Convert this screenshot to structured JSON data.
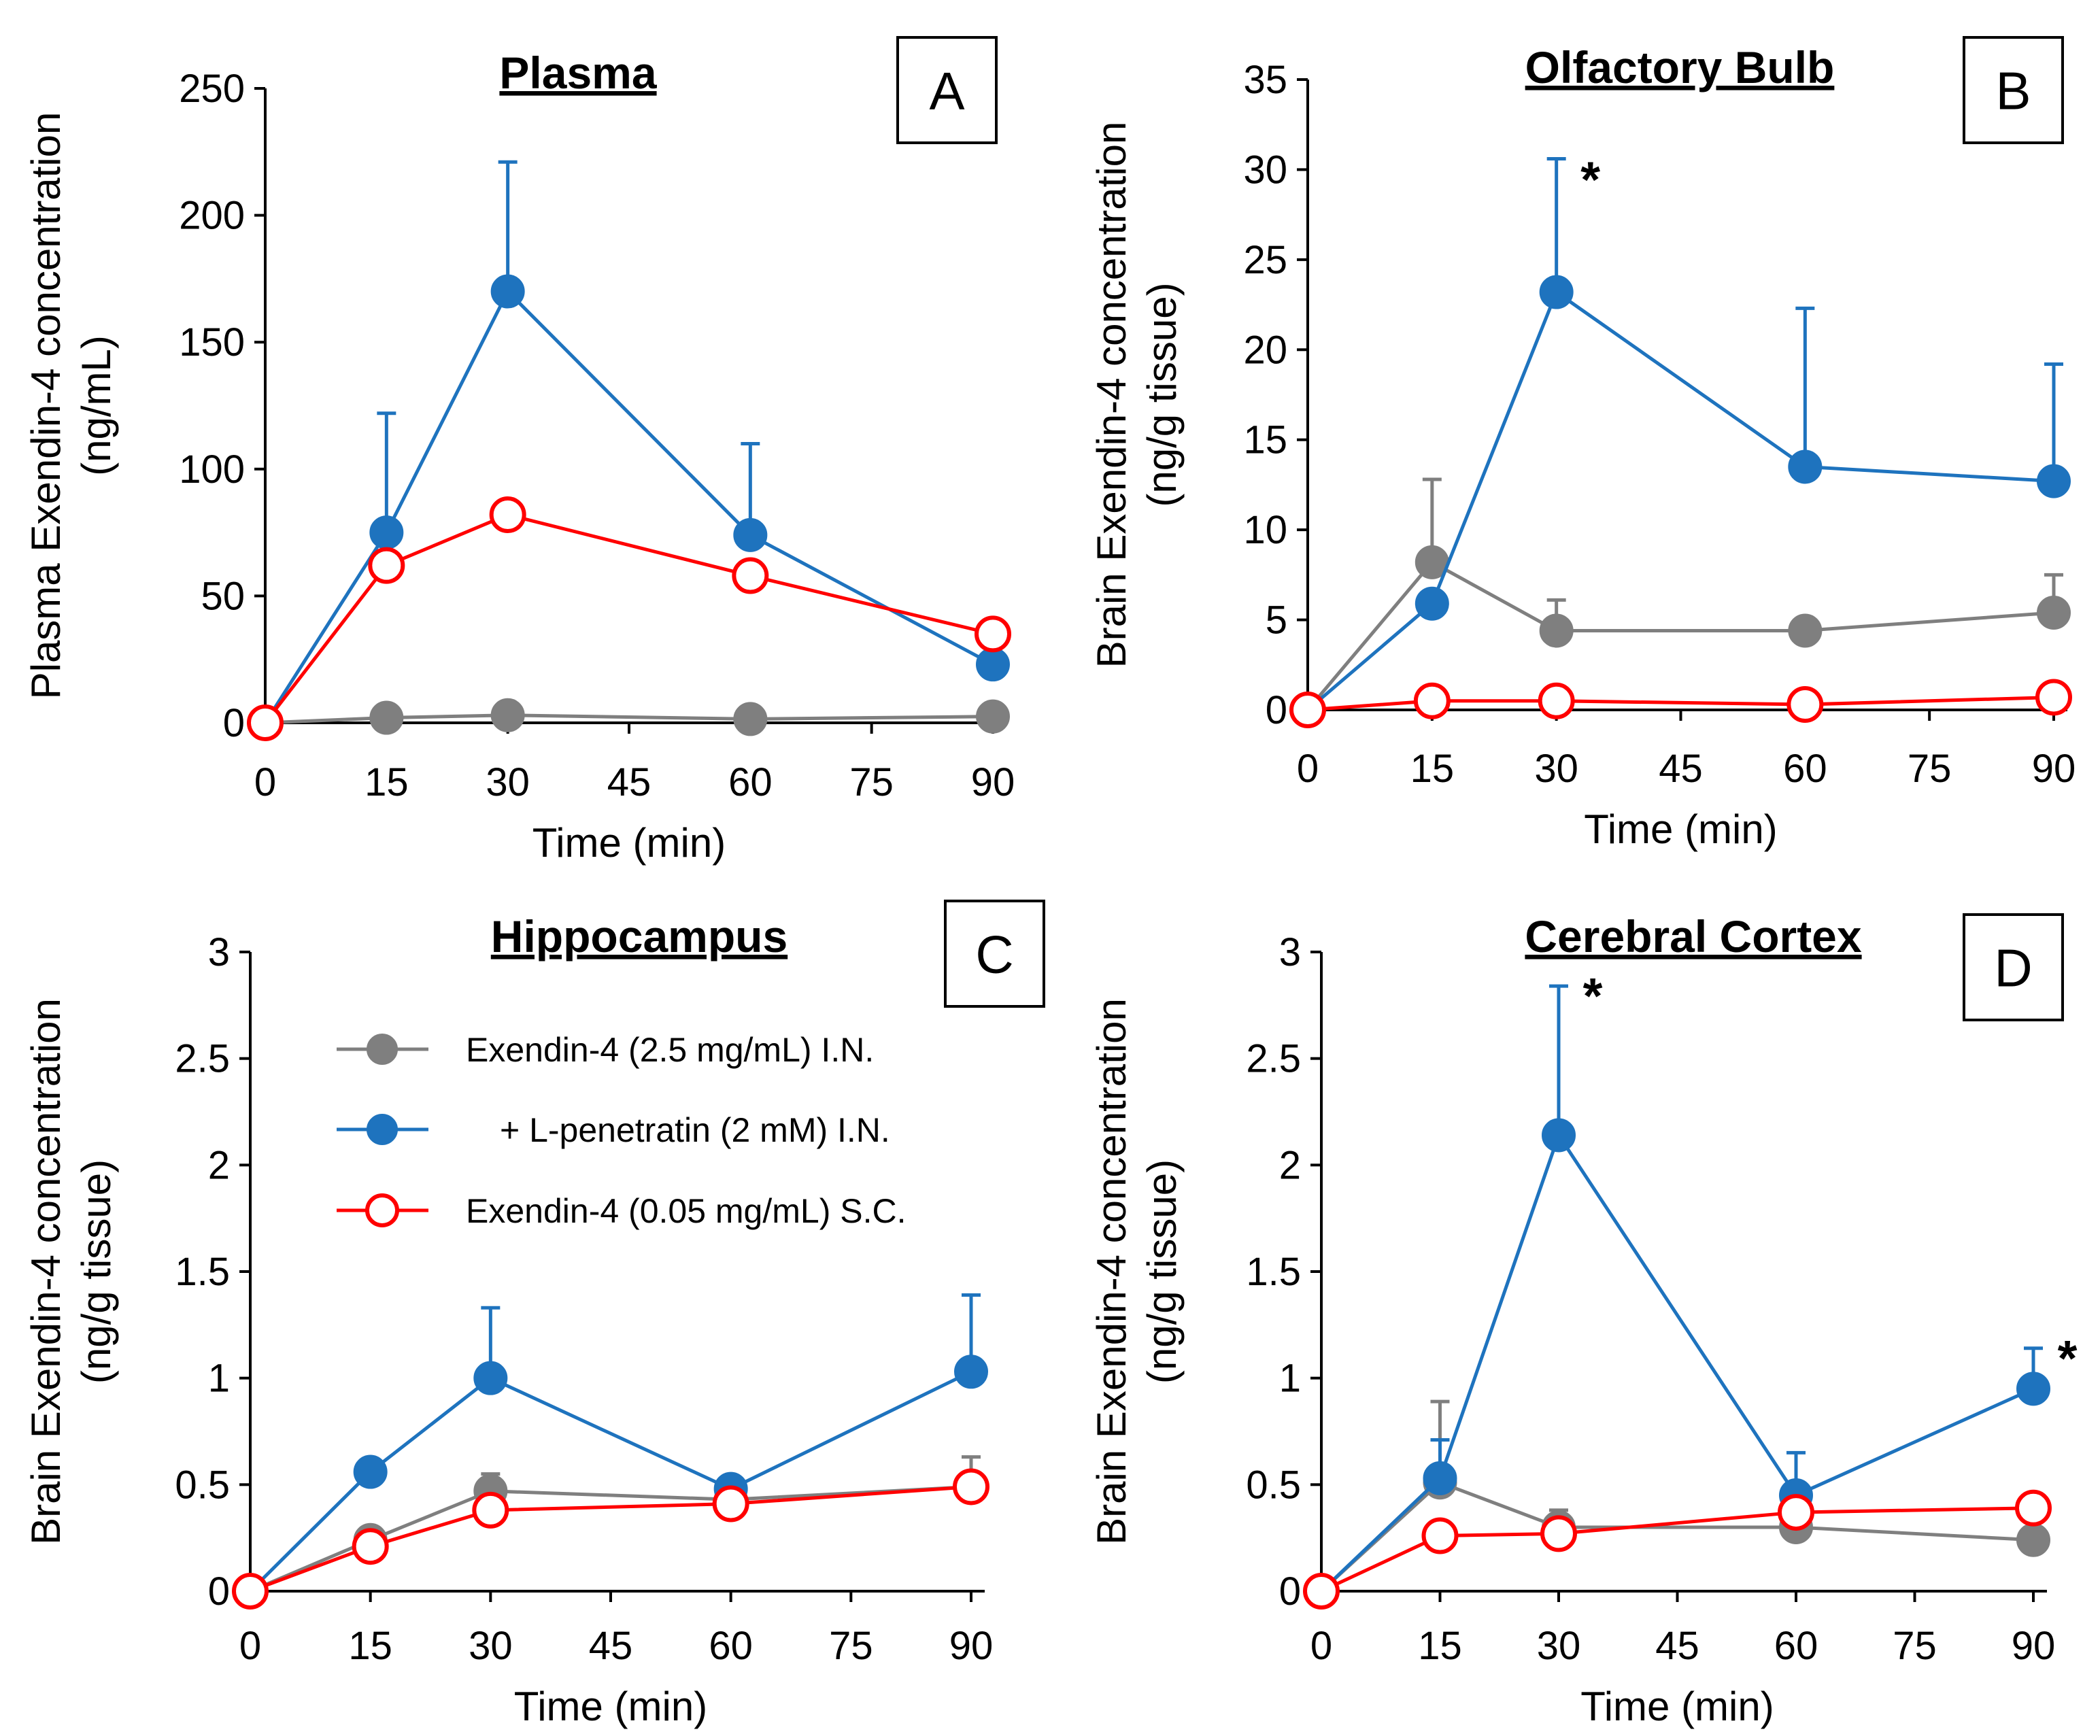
{
  "colors": {
    "gray_series": "#7f7f7f",
    "blue_series": "#1e73be",
    "red_series": "#ff0000"
  },
  "legend": [
    {
      "label": "Exendin-4 (2.5 mg/mL) I.N.",
      "series": "gray"
    },
    {
      "label": "+ L-penetratin (2 mM) I.N.",
      "series": "blue"
    },
    {
      "label": "Exendin-4 (0.05 mg/mL) S.C.",
      "series": "red"
    }
  ],
  "chart_data": [
    {
      "type": "line",
      "panel": "A",
      "title": "Plasma",
      "xlabel": "Time (min)",
      "ylabel": [
        "Plasma Exendin-4 concentration",
        "(ng/mL)"
      ],
      "x": [
        0,
        15,
        30,
        60,
        90
      ],
      "xticks": [
        0,
        15,
        30,
        45,
        60,
        75,
        90
      ],
      "xlim": [
        0,
        90
      ],
      "yticks": [
        0,
        50,
        100,
        150,
        200,
        250
      ],
      "ytick_labels": [
        "0",
        "50",
        "100",
        "150",
        "200",
        "250"
      ],
      "ylim": [
        0,
        250
      ],
      "annotations": [],
      "series": [
        {
          "name": "Exendin-4 (2.5 mg/mL) I.N.",
          "values": [
            0,
            2,
            3,
            1.5,
            2.5
          ],
          "errors": [
            0,
            0,
            0,
            0,
            0
          ]
        },
        {
          "name": "+ L-penetratin (2 mM) I.N.",
          "values": [
            0,
            75,
            170,
            74,
            23
          ],
          "errors": [
            0,
            47,
            51,
            36,
            0
          ]
        },
        {
          "name": "Exendin-4 (0.05 mg/mL) S.C.",
          "values": [
            0,
            62,
            82,
            58,
            35
          ],
          "errors": [
            0,
            0,
            0,
            0,
            0
          ]
        }
      ]
    },
    {
      "type": "line",
      "panel": "B",
      "title": "Olfactory Bulb",
      "xlabel": "Time (min)",
      "ylabel": [
        "Brain Exendin-4 concentration",
        "(ng/g tissue)"
      ],
      "x": [
        0,
        15,
        30,
        60,
        90
      ],
      "xticks": [
        0,
        15,
        30,
        45,
        60,
        75,
        90
      ],
      "xlim": [
        0,
        90
      ],
      "yticks": [
        0,
        5,
        10,
        15,
        20,
        25,
        30,
        35
      ],
      "ytick_labels": [
        "0",
        "5",
        "10",
        "15",
        "20",
        "25",
        "30",
        "35"
      ],
      "ylim": [
        0,
        35
      ],
      "annotations": [
        {
          "text": "*",
          "x": 30,
          "y": 30
        }
      ],
      "series": [
        {
          "name": "Exendin-4 (2.5 mg/mL) I.N.",
          "values": [
            0,
            8.2,
            4.4,
            4.4,
            5.4
          ],
          "errors": [
            0,
            4.6,
            1.7,
            0,
            2.1
          ]
        },
        {
          "name": "+ L-penetratin (2 mM) I.N.",
          "values": [
            0,
            5.9,
            23.2,
            13.5,
            12.7
          ],
          "errors": [
            0,
            0,
            7.4,
            8.8,
            6.5
          ]
        },
        {
          "name": "Exendin-4 (0.05 mg/mL) S.C.",
          "values": [
            0,
            0.5,
            0.5,
            0.3,
            0.7
          ],
          "errors": [
            0,
            0,
            0,
            0,
            0
          ]
        }
      ]
    },
    {
      "type": "line",
      "panel": "C",
      "title": "Hippocampus",
      "xlabel": "Time (min)",
      "ylabel": [
        "Brain Exendin-4 concentration",
        "(ng/g tissue)"
      ],
      "x": [
        0,
        15,
        30,
        60,
        90
      ],
      "xticks": [
        0,
        15,
        30,
        45,
        60,
        75,
        90
      ],
      "xlim": [
        0,
        90
      ],
      "yticks": [
        0,
        0.5,
        1,
        1.5,
        2,
        2.5,
        3
      ],
      "ytick_labels": [
        "0",
        "0.5",
        "1",
        "1.5",
        "2",
        "2.5",
        "3"
      ],
      "ylim": [
        0,
        3
      ],
      "annotations": [],
      "series": [
        {
          "name": "Exendin-4 (2.5 mg/mL) I.N.",
          "values": [
            0,
            0.24,
            0.47,
            0.43,
            0.49
          ],
          "errors": [
            0,
            0,
            0.08,
            0,
            0.14
          ]
        },
        {
          "name": "+ L-penetratin (2 mM) I.N.",
          "values": [
            0,
            0.56,
            1.0,
            0.48,
            1.03
          ],
          "errors": [
            0,
            0,
            0.33,
            0,
            0.36
          ]
        },
        {
          "name": "Exendin-4 (0.05 mg/mL) S.C.",
          "values": [
            0,
            0.21,
            0.38,
            0.41,
            0.49
          ],
          "errors": [
            0,
            0,
            0,
            0,
            0
          ]
        }
      ]
    },
    {
      "type": "line",
      "panel": "D",
      "title": "Cerebral Cortex",
      "xlabel": "Time (min)",
      "ylabel": [
        "Brain Exendin-4 concentration",
        "(ng/g tissue)"
      ],
      "x": [
        0,
        15,
        30,
        60,
        90
      ],
      "xticks": [
        0,
        15,
        30,
        45,
        60,
        75,
        90
      ],
      "xlim": [
        0,
        90
      ],
      "yticks": [
        0,
        0.5,
        1,
        1.5,
        2,
        2.5,
        3
      ],
      "ytick_labels": [
        "0",
        "0.5",
        "1",
        "1.5",
        "2",
        "2.5",
        "3"
      ],
      "ylim": [
        0,
        3
      ],
      "annotations": [
        {
          "text": "*",
          "x": 30,
          "y": 2.84
        },
        {
          "text": "*",
          "x": 90,
          "y": 1.14
        }
      ],
      "series": [
        {
          "name": "Exendin-4 (2.5 mg/mL) I.N.",
          "values": [
            0,
            0.51,
            0.3,
            0.3,
            0.24
          ],
          "errors": [
            0,
            0.38,
            0.08,
            0,
            0
          ]
        },
        {
          "name": "+ L-penetratin (2 mM) I.N.",
          "values": [
            0,
            0.53,
            2.14,
            0.45,
            0.95
          ],
          "errors": [
            0,
            0.18,
            0.7,
            0.2,
            0.19
          ]
        },
        {
          "name": "Exendin-4 (0.05 mg/mL) S.C.",
          "values": [
            0,
            0.26,
            0.27,
            0.37,
            0.39
          ],
          "errors": [
            0,
            0,
            0,
            0,
            0
          ]
        }
      ]
    }
  ]
}
